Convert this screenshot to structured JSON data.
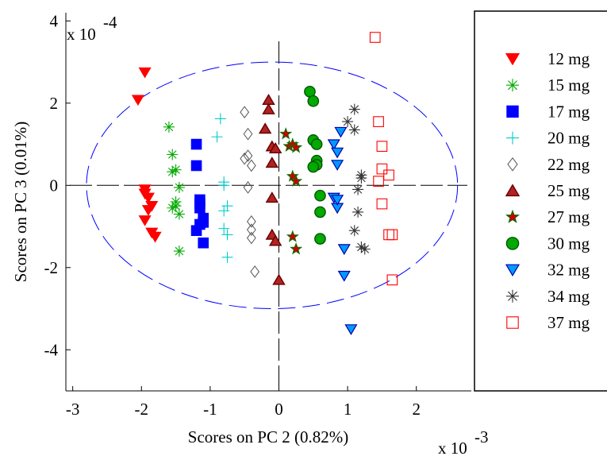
{
  "chart_data": {
    "type": "scatter",
    "xlabel": "Scores on PC 2 (0.82%)",
    "ylabel": "Scores on PC 3 (0.01%)",
    "x_multiplier": "x 10",
    "x_exponent": "-3",
    "y_multiplier": "x 10",
    "y_exponent": "-4",
    "xlim": [
      -3.1,
      2.8
    ],
    "ylim": [
      -5,
      4.2
    ],
    "xticks": [
      -3,
      -2,
      -1,
      0,
      1,
      2
    ],
    "xtick_labels": [
      "-3",
      "-2",
      "-1",
      "0",
      "1",
      "2"
    ],
    "yticks": [
      -4,
      -2,
      0,
      2,
      4
    ],
    "ytick_labels": [
      "-4",
      "-2",
      "0",
      "2",
      "4"
    ],
    "legend_position": "right",
    "confidence_ellipse": {
      "center": [
        -0.1,
        0
      ],
      "rx": 2.7,
      "ry": 3.0,
      "style": "dashed",
      "color": "#0000ff"
    },
    "series": [
      {
        "name": "12 mg",
        "marker": "triangle-down",
        "color": "#ff0000",
        "fill": "#ff0000",
        "points": [
          [
            -1.95,
            2.75
          ],
          [
            -2.05,
            2.08
          ],
          [
            -1.95,
            -0.1
          ],
          [
            -1.9,
            -0.3
          ],
          [
            -1.85,
            -0.5
          ],
          [
            -1.9,
            -0.6
          ],
          [
            -1.95,
            -0.85
          ],
          [
            -1.85,
            -1.15
          ],
          [
            -1.8,
            -1.25
          ],
          [
            -1.95,
            -0.2
          ]
        ]
      },
      {
        "name": "15 mg",
        "marker": "asterisk",
        "color": "#00aa00",
        "fill": "none",
        "points": [
          [
            -1.6,
            1.42
          ],
          [
            -1.55,
            0.75
          ],
          [
            -1.5,
            0.38
          ],
          [
            -1.55,
            0.33
          ],
          [
            -1.45,
            -0.05
          ],
          [
            -1.5,
            -0.4
          ],
          [
            -1.55,
            -0.55
          ],
          [
            -1.45,
            -0.7
          ],
          [
            -1.45,
            -1.6
          ],
          [
            -1.5,
            -0.5
          ]
        ]
      },
      {
        "name": "17 mg",
        "marker": "square",
        "color": "#0000ff",
        "fill": "#0000ff",
        "points": [
          [
            -1.2,
            1.0
          ],
          [
            -1.2,
            0.48
          ],
          [
            -1.15,
            -0.35
          ],
          [
            -1.15,
            -0.55
          ],
          [
            -1.1,
            -0.8
          ],
          [
            -1.15,
            -0.95
          ],
          [
            -1.2,
            -1.1
          ],
          [
            -1.1,
            -1.4
          ],
          [
            -1.15,
            -0.45
          ],
          [
            -1.1,
            -0.9
          ]
        ]
      },
      {
        "name": "20 mg",
        "marker": "plus",
        "color": "#00cccc",
        "fill": "none",
        "points": [
          [
            -0.85,
            1.62
          ],
          [
            -0.9,
            1.18
          ],
          [
            -0.8,
            0.08
          ],
          [
            -0.75,
            -0.5
          ],
          [
            -0.8,
            -0.62
          ],
          [
            -0.8,
            -1.05
          ],
          [
            -0.75,
            -1.2
          ],
          [
            -0.75,
            -1.75
          ],
          [
            -0.8,
            0.0
          ]
        ]
      },
      {
        "name": "22 mg",
        "marker": "diamond",
        "color": "#555555",
        "fill": "none",
        "points": [
          [
            -0.5,
            1.78
          ],
          [
            -0.45,
            1.25
          ],
          [
            -0.5,
            0.65
          ],
          [
            -0.45,
            0.72
          ],
          [
            -0.4,
            0.48
          ],
          [
            -0.45,
            -0.05
          ],
          [
            -0.4,
            -0.88
          ],
          [
            -0.4,
            -1.08
          ],
          [
            -0.4,
            -1.28
          ],
          [
            -0.35,
            -2.1
          ]
        ]
      },
      {
        "name": "25 mg",
        "marker": "triangle-up",
        "color": "#660000",
        "fill": "#b22222",
        "points": [
          [
            -0.15,
            2.08
          ],
          [
            -0.15,
            1.85
          ],
          [
            -0.2,
            1.38
          ],
          [
            -0.1,
            0.95
          ],
          [
            -0.05,
            0.9
          ],
          [
            -0.1,
            0.55
          ],
          [
            -0.1,
            -0.3
          ],
          [
            -0.1,
            -1.2
          ],
          [
            -0.05,
            -1.35
          ],
          [
            0.0,
            -2.3
          ]
        ]
      },
      {
        "name": "27 mg",
        "marker": "star",
        "color": "#007700",
        "fill": "#cc0000",
        "points": [
          [
            0.1,
            1.25
          ],
          [
            0.15,
            0.95
          ],
          [
            0.2,
            1.0
          ],
          [
            0.25,
            0.92
          ],
          [
            0.2,
            0.22
          ],
          [
            0.25,
            0.1
          ],
          [
            0.2,
            -1.25
          ],
          [
            0.25,
            -1.55
          ]
        ]
      },
      {
        "name": "30 mg",
        "marker": "circle",
        "color": "#005500",
        "fill": "#00aa00",
        "points": [
          [
            0.45,
            2.28
          ],
          [
            0.5,
            2.05
          ],
          [
            0.5,
            1.1
          ],
          [
            0.55,
            1.0
          ],
          [
            0.55,
            0.6
          ],
          [
            0.55,
            0.5
          ],
          [
            0.6,
            -0.25
          ],
          [
            0.6,
            -0.65
          ],
          [
            0.6,
            -1.3
          ],
          [
            0.5,
            0.45
          ]
        ]
      },
      {
        "name": "32 mg",
        "marker": "triangle-down",
        "color": "#0000aa",
        "fill": "#0099ff",
        "points": [
          [
            0.9,
            1.3
          ],
          [
            0.8,
            1.0
          ],
          [
            0.85,
            0.8
          ],
          [
            0.85,
            0.5
          ],
          [
            0.8,
            -0.3
          ],
          [
            0.85,
            -0.55
          ],
          [
            0.95,
            -1.55
          ],
          [
            0.95,
            -2.2
          ],
          [
            1.05,
            -3.5
          ],
          [
            0.85,
            -0.35
          ]
        ]
      },
      {
        "name": "34 mg",
        "marker": "asterisk",
        "color": "#333333",
        "fill": "none",
        "points": [
          [
            1.0,
            1.55
          ],
          [
            1.1,
            1.85
          ],
          [
            1.1,
            1.35
          ],
          [
            1.2,
            0.25
          ],
          [
            1.2,
            0.18
          ],
          [
            1.15,
            -0.1
          ],
          [
            1.15,
            -0.65
          ],
          [
            1.1,
            -1.1
          ],
          [
            1.2,
            -1.5
          ],
          [
            1.25,
            -1.55
          ]
        ]
      },
      {
        "name": "37 mg",
        "marker": "open-square",
        "color": "#ff0000",
        "fill": "none",
        "points": [
          [
            1.4,
            3.6
          ],
          [
            1.45,
            1.55
          ],
          [
            1.5,
            0.95
          ],
          [
            1.5,
            0.4
          ],
          [
            1.6,
            0.25
          ],
          [
            1.45,
            0.1
          ],
          [
            1.5,
            -0.45
          ],
          [
            1.6,
            -1.2
          ],
          [
            1.65,
            -1.2
          ],
          [
            1.65,
            -2.3
          ]
        ]
      }
    ]
  }
}
